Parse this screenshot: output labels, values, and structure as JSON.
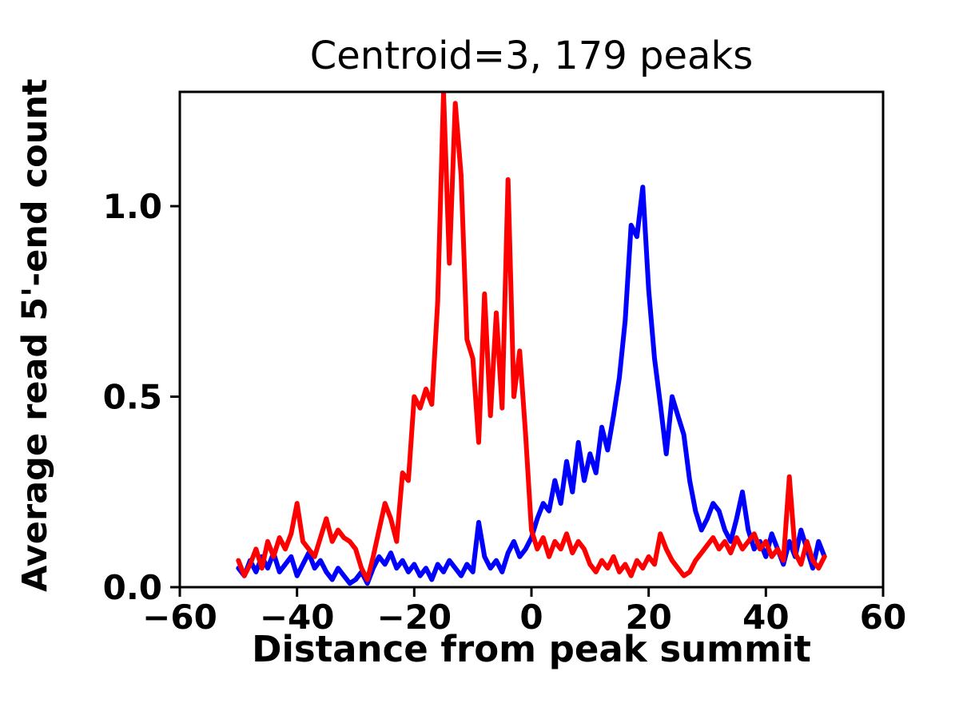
{
  "figure": {
    "background": "#ffffff",
    "axes_edge_color": "#000000",
    "text_color": "#000000"
  },
  "chart_data": {
    "type": "line",
    "title": "Centroid=3, 179 peaks",
    "xlabel": "Distance from peak summit",
    "ylabel": "Average read 5'-end count",
    "xlim": [
      -60,
      60
    ],
    "ylim": [
      0,
      1.3
    ],
    "xticks": [
      -60,
      -40,
      -20,
      0,
      20,
      40,
      60
    ],
    "xtick_labels": [
      "−60",
      "−40",
      "−20",
      "0",
      "20",
      "40",
      "60"
    ],
    "yticks": [
      0.0,
      0.5,
      1.0
    ],
    "ytick_labels": [
      "0.0",
      "0.5",
      "1.0"
    ],
    "grid": false,
    "legend": null,
    "line_width": 6,
    "x": [
      -50,
      -49,
      -48,
      -47,
      -46,
      -45,
      -44,
      -43,
      -42,
      -41,
      -40,
      -39,
      -38,
      -37,
      -36,
      -35,
      -34,
      -33,
      -32,
      -31,
      -30,
      -29,
      -28,
      -27,
      -26,
      -25,
      -24,
      -23,
      -22,
      -21,
      -20,
      -19,
      -18,
      -17,
      -16,
      -15,
      -14,
      -13,
      -12,
      -11,
      -10,
      -9,
      -8,
      -7,
      -6,
      -5,
      -4,
      -3,
      -2,
      -1,
      0,
      1,
      2,
      3,
      4,
      5,
      6,
      7,
      8,
      9,
      10,
      11,
      12,
      13,
      14,
      15,
      16,
      17,
      18,
      19,
      20,
      21,
      22,
      23,
      24,
      25,
      26,
      27,
      28,
      29,
      30,
      31,
      32,
      33,
      34,
      35,
      36,
      37,
      38,
      39,
      40,
      41,
      42,
      43,
      44,
      45,
      46,
      47,
      48,
      49,
      50
    ],
    "series": [
      {
        "name": "blue",
        "color": "#0000ff",
        "values": [
          0.05,
          0.03,
          0.07,
          0.04,
          0.08,
          0.05,
          0.09,
          0.04,
          0.06,
          0.08,
          0.03,
          0.06,
          0.09,
          0.05,
          0.07,
          0.04,
          0.02,
          0.05,
          0.03,
          0.01,
          0.02,
          0.04,
          0.01,
          0.05,
          0.08,
          0.06,
          0.09,
          0.05,
          0.07,
          0.04,
          0.06,
          0.03,
          0.05,
          0.02,
          0.06,
          0.04,
          0.07,
          0.05,
          0.03,
          0.06,
          0.04,
          0.17,
          0.08,
          0.05,
          0.07,
          0.04,
          0.09,
          0.12,
          0.08,
          0.1,
          0.13,
          0.18,
          0.22,
          0.2,
          0.28,
          0.22,
          0.33,
          0.25,
          0.38,
          0.28,
          0.35,
          0.3,
          0.42,
          0.36,
          0.45,
          0.55,
          0.7,
          0.95,
          0.92,
          1.05,
          0.78,
          0.6,
          0.48,
          0.35,
          0.5,
          0.45,
          0.4,
          0.28,
          0.2,
          0.15,
          0.18,
          0.22,
          0.2,
          0.15,
          0.12,
          0.18,
          0.25,
          0.15,
          0.1,
          0.12,
          0.08,
          0.14,
          0.1,
          0.06,
          0.12,
          0.08,
          0.15,
          0.1,
          0.05,
          0.12,
          0.08
        ]
      },
      {
        "name": "red",
        "color": "#ff0000",
        "values": [
          0.07,
          0.03,
          0.06,
          0.1,
          0.05,
          0.12,
          0.08,
          0.13,
          0.1,
          0.14,
          0.22,
          0.12,
          0.1,
          0.08,
          0.13,
          0.18,
          0.12,
          0.15,
          0.13,
          0.12,
          0.1,
          0.05,
          0.02,
          0.08,
          0.15,
          0.22,
          0.18,
          0.12,
          0.3,
          0.28,
          0.5,
          0.47,
          0.52,
          0.48,
          0.75,
          1.3,
          0.85,
          1.27,
          1.08,
          0.65,
          0.6,
          0.38,
          0.77,
          0.45,
          0.72,
          0.47,
          1.07,
          0.5,
          0.62,
          0.4,
          0.15,
          0.1,
          0.13,
          0.08,
          0.12,
          0.1,
          0.14,
          0.09,
          0.12,
          0.1,
          0.06,
          0.04,
          0.07,
          0.05,
          0.08,
          0.04,
          0.06,
          0.03,
          0.07,
          0.05,
          0.08,
          0.06,
          0.14,
          0.1,
          0.07,
          0.05,
          0.03,
          0.04,
          0.07,
          0.09,
          0.11,
          0.13,
          0.1,
          0.12,
          0.09,
          0.13,
          0.1,
          0.12,
          0.14,
          0.1,
          0.12,
          0.08,
          0.1,
          0.07,
          0.29,
          0.09,
          0.06,
          0.12,
          0.07,
          0.05,
          0.08
        ]
      }
    ]
  }
}
